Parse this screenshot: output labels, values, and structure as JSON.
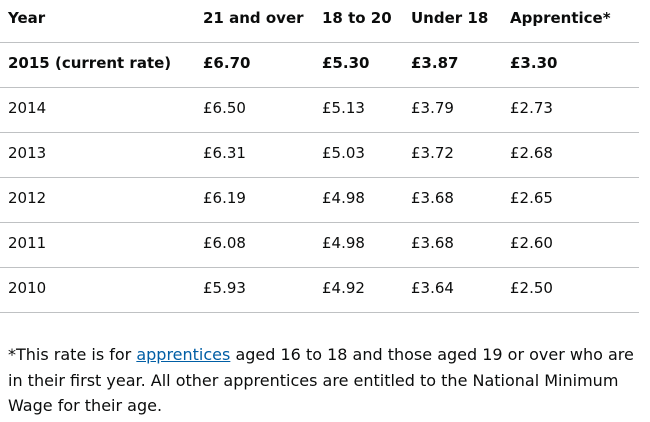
{
  "table": {
    "headers": [
      "Year",
      "21 and over",
      "18 to 20",
      "Under 18",
      "Apprentice*"
    ],
    "rows": [
      [
        "2015 (current rate)",
        "£6.70",
        "£5.30",
        "£3.87",
        "£3.30"
      ],
      [
        "2014",
        "£6.50",
        "£5.13",
        "£3.79",
        "£2.73"
      ],
      [
        "2013",
        "£6.31",
        "£5.03",
        "£3.72",
        "£2.68"
      ],
      [
        "2012",
        "£6.19",
        "£4.98",
        "£3.68",
        "£2.65"
      ],
      [
        "2011",
        "£6.08",
        "£4.98",
        "£3.68",
        "£2.60"
      ],
      [
        "2010",
        "£5.93",
        "£4.92",
        "£3.64",
        "£2.50"
      ]
    ]
  },
  "footnote": {
    "lead": "*This rate is for ",
    "link": "apprentices",
    "rest": " aged 16 to 18 and those aged 19 or over who are",
    "line2": "in their first year. All other apprentices are entitled to the National Minimum",
    "line3": "Wage for their age."
  }
}
